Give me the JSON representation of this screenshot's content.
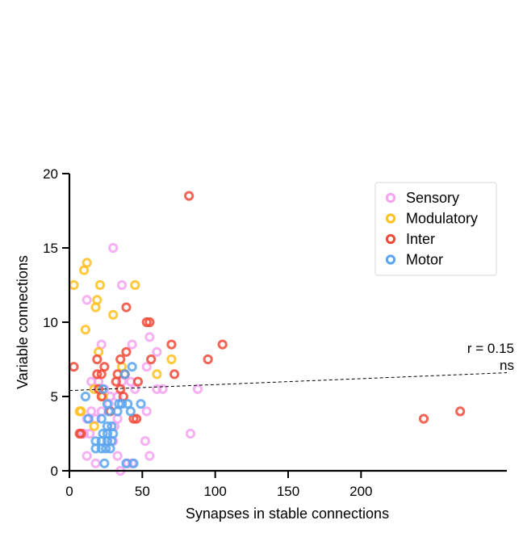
{
  "chart_data": {
    "type": "scatter",
    "xlabel": "Synapses in stable connections",
    "ylabel": "Variable connections",
    "xlim": [
      0,
      300
    ],
    "ylim": [
      0,
      20
    ],
    "xticks": [
      0,
      50,
      100,
      150,
      200
    ],
    "yticks": [
      0,
      5,
      10,
      15,
      20
    ],
    "legend_position": "top-right",
    "grid": false,
    "annotation": {
      "r_text": "r = 0.15",
      "sig_text": "ns"
    },
    "trend_line": {
      "x": [
        0,
        300
      ],
      "y": [
        5.4,
        6.6
      ],
      "style": "dashed"
    },
    "series": [
      {
        "name": "Sensory",
        "color": "#f5a3f0",
        "points": [
          [
            30,
            15
          ],
          [
            36,
            12.5
          ],
          [
            12,
            11.5
          ],
          [
            22,
            8.5
          ],
          [
            43,
            8.5
          ],
          [
            55,
            9
          ],
          [
            60,
            8
          ],
          [
            53,
            7
          ],
          [
            64,
            5.5
          ],
          [
            88,
            5.5
          ],
          [
            60,
            5.5
          ],
          [
            53,
            4
          ],
          [
            15,
            6
          ],
          [
            20,
            6
          ],
          [
            24,
            5.5
          ],
          [
            28,
            5
          ],
          [
            33,
            5
          ],
          [
            36,
            6
          ],
          [
            38,
            6.5
          ],
          [
            42,
            6
          ],
          [
            45,
            5.5
          ],
          [
            15,
            4
          ],
          [
            22,
            4
          ],
          [
            27,
            4.5
          ],
          [
            31,
            3
          ],
          [
            33,
            3.5
          ],
          [
            12,
            3.5
          ],
          [
            18,
            3.5
          ],
          [
            10,
            2.5
          ],
          [
            14,
            2.5
          ],
          [
            30,
            2
          ],
          [
            52,
            2
          ],
          [
            83,
            2.5
          ],
          [
            12,
            1
          ],
          [
            18,
            0.5
          ],
          [
            33,
            1
          ],
          [
            55,
            1
          ],
          [
            35,
            0
          ],
          [
            43,
            0.5
          ],
          [
            40,
            0.5
          ]
        ]
      },
      {
        "name": "Modulatory",
        "color": "#ffbf1f",
        "points": [
          [
            3,
            12.5
          ],
          [
            10,
            13.5
          ],
          [
            12,
            14
          ],
          [
            21,
            12.5
          ],
          [
            45,
            12.5
          ],
          [
            19,
            11.5
          ],
          [
            18,
            11
          ],
          [
            30,
            10.5
          ],
          [
            11,
            9.5
          ],
          [
            20,
            8
          ],
          [
            38,
            6.5
          ],
          [
            60,
            6.5
          ],
          [
            70,
            7.5
          ],
          [
            36,
            7
          ],
          [
            23,
            5
          ],
          [
            17,
            5.5
          ],
          [
            7,
            4
          ],
          [
            17,
            3
          ],
          [
            8,
            4
          ]
        ]
      },
      {
        "name": "Inter",
        "color": "#f04a3a",
        "points": [
          [
            82,
            18.5
          ],
          [
            39,
            11
          ],
          [
            53,
            10
          ],
          [
            55,
            10
          ],
          [
            70,
            8.5
          ],
          [
            105,
            8.5
          ],
          [
            39,
            8
          ],
          [
            35,
            7.5
          ],
          [
            56,
            7.5
          ],
          [
            95,
            7.5
          ],
          [
            3,
            7
          ],
          [
            24,
            7
          ],
          [
            19,
            7.5
          ],
          [
            22,
            6.5
          ],
          [
            19,
            6.5
          ],
          [
            33,
            6.5
          ],
          [
            38,
            6.5
          ],
          [
            72,
            6.5
          ],
          [
            32,
            6
          ],
          [
            47,
            6
          ],
          [
            35,
            5.5
          ],
          [
            20,
            5.5
          ],
          [
            22,
            5
          ],
          [
            37,
            5
          ],
          [
            28,
            4
          ],
          [
            44,
            3.5
          ],
          [
            46,
            3.5
          ],
          [
            7,
            2.5
          ],
          [
            8,
            2.5
          ],
          [
            243,
            3.5
          ],
          [
            268,
            4
          ]
        ]
      },
      {
        "name": "Motor",
        "color": "#5aa6ee",
        "points": [
          [
            43,
            7
          ],
          [
            38,
            6.5
          ],
          [
            23,
            5.5
          ],
          [
            11,
            5
          ],
          [
            26,
            4.5
          ],
          [
            34,
            4.5
          ],
          [
            36,
            4.5
          ],
          [
            40,
            4.5
          ],
          [
            49,
            4.5
          ],
          [
            27,
            4
          ],
          [
            33,
            4
          ],
          [
            42,
            4
          ],
          [
            13,
            3.5
          ],
          [
            22,
            3.5
          ],
          [
            26,
            3
          ],
          [
            29,
            3
          ],
          [
            23,
            2.5
          ],
          [
            26,
            2.5
          ],
          [
            30,
            2.5
          ],
          [
            18,
            2
          ],
          [
            22,
            2
          ],
          [
            26,
            2
          ],
          [
            29,
            2
          ],
          [
            18,
            1.5
          ],
          [
            22,
            1.5
          ],
          [
            25,
            1.5
          ],
          [
            28,
            1.5
          ],
          [
            24,
            0.5
          ],
          [
            39,
            0.5
          ],
          [
            44,
            0.5
          ]
        ]
      }
    ]
  }
}
